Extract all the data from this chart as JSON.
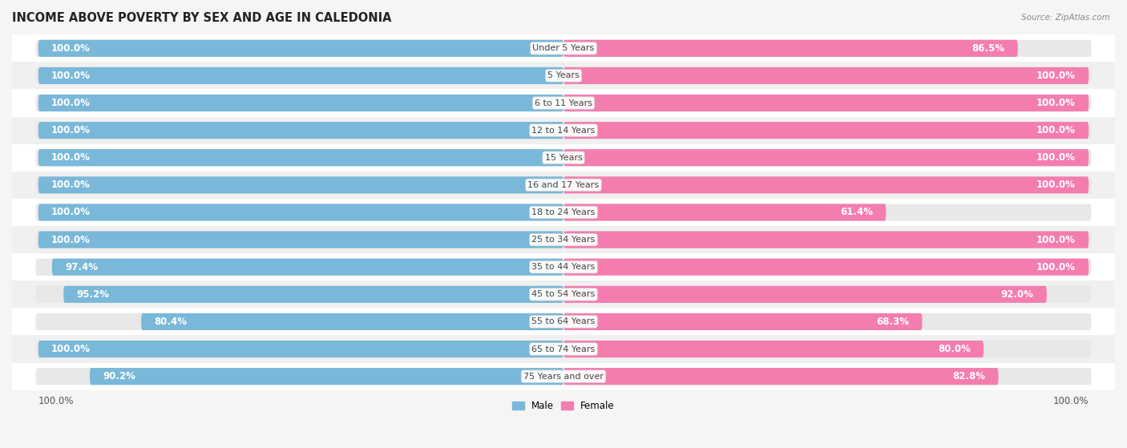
{
  "title": "INCOME ABOVE POVERTY BY SEX AND AGE IN CALEDONIA",
  "source": "Source: ZipAtlas.com",
  "categories": [
    "Under 5 Years",
    "5 Years",
    "6 to 11 Years",
    "12 to 14 Years",
    "15 Years",
    "16 and 17 Years",
    "18 to 24 Years",
    "25 to 34 Years",
    "35 to 44 Years",
    "45 to 54 Years",
    "55 to 64 Years",
    "65 to 74 Years",
    "75 Years and over"
  ],
  "male_values": [
    100.0,
    100.0,
    100.0,
    100.0,
    100.0,
    100.0,
    100.0,
    100.0,
    97.4,
    95.2,
    80.4,
    100.0,
    90.2
  ],
  "female_values": [
    86.5,
    100.0,
    100.0,
    100.0,
    100.0,
    100.0,
    61.4,
    100.0,
    100.0,
    92.0,
    68.3,
    80.0,
    82.8
  ],
  "male_color": "#7ab8d9",
  "female_color": "#f47db0",
  "background_row_odd": "#f5f5f5",
  "background_row_even": "#ffffff",
  "bar_bg_color": "#e8e8e8",
  "bar_height": 0.62,
  "max_value": 100.0,
  "title_fontsize": 10.5,
  "label_fontsize": 8.5,
  "tick_fontsize": 8.5,
  "legend_labels": [
    "Male",
    "Female"
  ]
}
